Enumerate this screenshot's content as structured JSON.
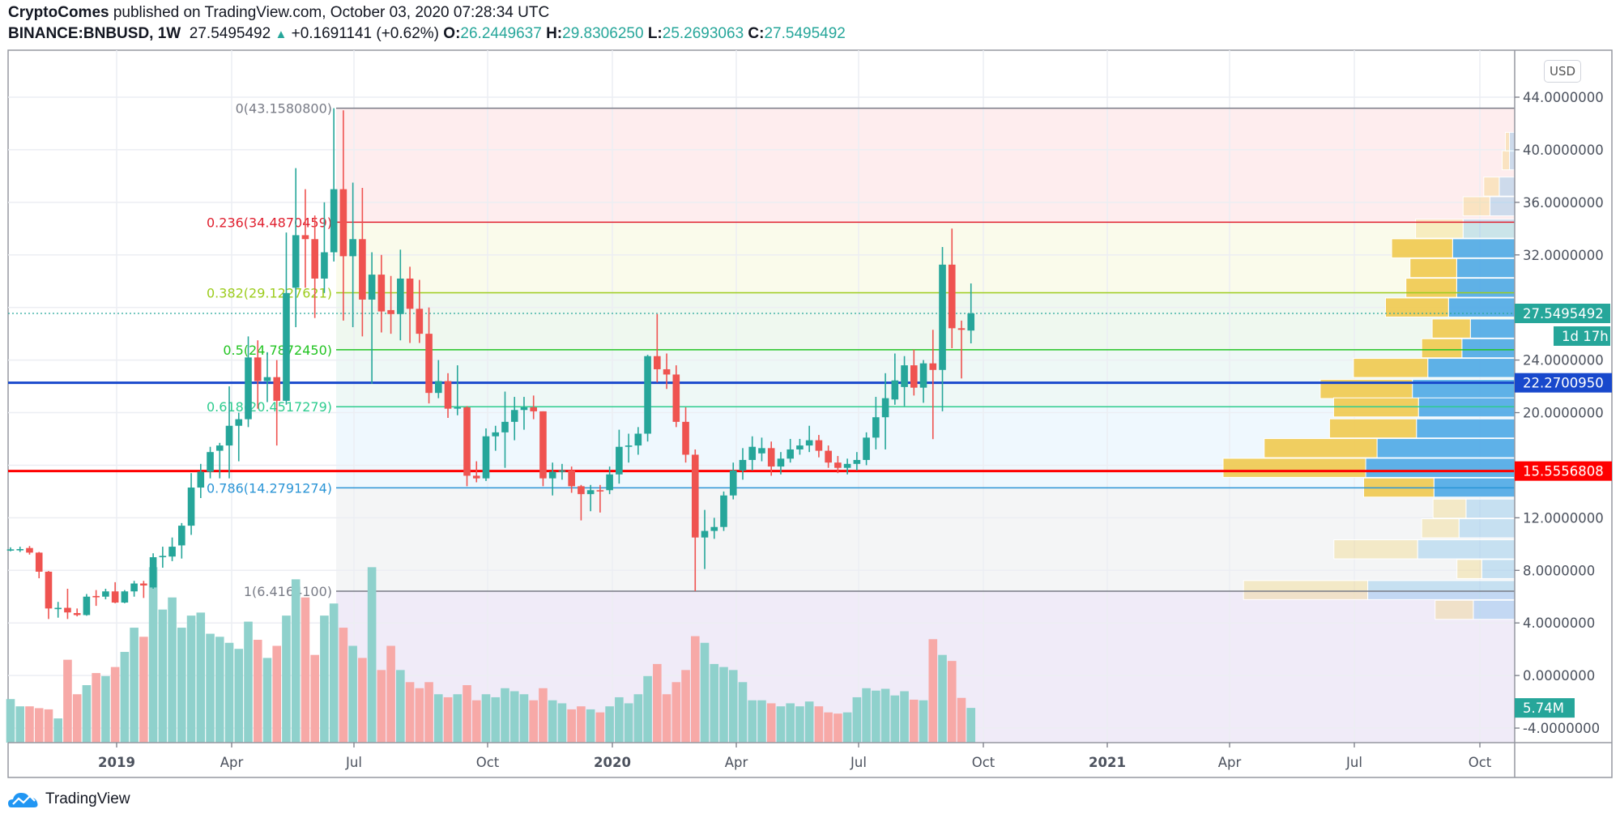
{
  "header": {
    "author": "CryptoComes",
    "published": " published on TradingView.com, October 03, 2020 07:28:34 UTC",
    "symbol": "BINANCE:BNBUSD, 1W",
    "last": "27.5495492",
    "change": "+0.1691141 (+0.62%)",
    "o_label": "O:",
    "o": "26.2449637",
    "h_label": "H:",
    "h": "29.8306250",
    "l_label": "L:",
    "l": "25.2693063",
    "c_label": "C:",
    "c": "27.5495492"
  },
  "currency_button": "USD",
  "logo": "TradingView",
  "colors": {
    "up": "#26a69a",
    "down": "#ef5350",
    "vol_up": "#8fd1cc",
    "vol_down": "#f7a9a7",
    "support_line": "#1848cc",
    "resistance_line": "#ff0000",
    "profile_up": "#f0c94f",
    "profile_down": "#4ea9e6"
  },
  "chart_data": {
    "type": "candlestick",
    "interval": "1W",
    "yaxis": {
      "range": [
        -5.2,
        47.2
      ],
      "ticks": [
        44,
        40,
        36,
        32,
        28,
        24,
        20,
        16,
        12,
        8,
        4,
        0,
        -4
      ],
      "tick_labels": [
        "44.0000000",
        "40.0000000",
        "36.0000000",
        "32.0000000",
        "",
        "24.0000000",
        "20.0000000",
        "",
        "12.0000000",
        "8.0000000",
        "4.0000000",
        "0.0000000",
        "-4.0000000"
      ]
    },
    "xaxis": {
      "tick_labels": [
        {
          "label": "2019",
          "bold": true
        },
        {
          "label": "Apr"
        },
        {
          "label": "Jul"
        },
        {
          "label": "Oct"
        },
        {
          "label": "2020",
          "bold": true
        },
        {
          "label": "Apr"
        },
        {
          "label": "Jul"
        },
        {
          "label": "Oct"
        },
        {
          "label": "2021",
          "bold": true
        },
        {
          "label": "Apr"
        },
        {
          "label": "Jul"
        },
        {
          "label": "Oct"
        }
      ]
    },
    "grid": true,
    "columns": [
      "date",
      "open",
      "high",
      "low",
      "close",
      "volume_millions"
    ],
    "candles": [
      [
        "2018-10-22",
        9.55,
        9.75,
        9.45,
        9.6,
        7.2
      ],
      [
        "2018-10-29",
        9.6,
        9.8,
        9.4,
        9.62,
        6.0
      ],
      [
        "2018-11-05",
        9.7,
        9.85,
        9.2,
        9.35,
        6.0
      ],
      [
        "2018-11-12",
        9.35,
        9.4,
        7.4,
        7.9,
        5.7
      ],
      [
        "2018-11-19",
        7.9,
        7.95,
        4.3,
        5.1,
        5.5
      ],
      [
        "2018-11-26",
        5.05,
        5.6,
        4.4,
        5.15,
        4.0
      ],
      [
        "2018-12-03",
        5.15,
        6.6,
        4.3,
        4.8,
        13.7
      ],
      [
        "2018-12-10",
        4.75,
        5.1,
        4.5,
        4.6,
        8.0
      ],
      [
        "2018-12-17",
        4.6,
        6.2,
        4.55,
        6.0,
        9.5
      ],
      [
        "2018-12-24",
        6.05,
        6.5,
        5.3,
        6.0,
        11.5
      ],
      [
        "2018-12-31",
        6.0,
        6.6,
        5.8,
        6.4,
        11.0
      ],
      [
        "2019-01-07",
        6.4,
        7.1,
        5.5,
        5.55,
        12.5
      ],
      [
        "2019-01-14",
        5.55,
        6.5,
        5.5,
        6.4,
        15
      ],
      [
        "2019-01-21",
        6.4,
        7.2,
        6.0,
        7.0,
        19
      ],
      [
        "2019-01-28",
        7.0,
        7.2,
        5.9,
        6.85,
        17.5
      ],
      [
        "2019-02-04",
        6.7,
        9.3,
        6.6,
        9.0,
        29
      ],
      [
        "2019-02-11",
        9.0,
        9.8,
        8.2,
        9.1,
        22
      ],
      [
        "2019-02-18",
        9.05,
        10.5,
        8.7,
        9.8,
        24
      ],
      [
        "2019-02-25",
        9.9,
        11.6,
        8.9,
        11.4,
        19
      ],
      [
        "2019-03-04",
        11.4,
        15.4,
        10.7,
        14.3,
        21
      ],
      [
        "2019-03-11",
        14.3,
        16.1,
        13.5,
        15.5,
        21.5
      ],
      [
        "2019-03-18",
        15.5,
        17.4,
        15.0,
        17.0,
        18
      ],
      [
        "2019-03-25",
        17.1,
        17.7,
        15.0,
        17.5,
        17.5
      ],
      [
        "2019-04-01",
        17.5,
        22.0,
        15.0,
        19.0,
        16.5
      ],
      [
        "2019-04-08",
        19.0,
        20.0,
        16.3,
        19.5,
        15.5
      ],
      [
        "2019-04-15",
        19.5,
        25.8,
        18.9,
        24.2,
        20
      ],
      [
        "2019-04-22",
        24.2,
        25.5,
        20.3,
        22.4,
        17
      ],
      [
        "2019-04-29",
        22.4,
        24.6,
        20.8,
        22.7,
        14
      ],
      [
        "2019-05-06",
        22.7,
        24.0,
        17.5,
        20.9,
        16
      ],
      [
        "2019-05-13",
        20.9,
        33.7,
        20.6,
        29.1,
        21
      ],
      [
        "2019-05-20",
        29.5,
        38.6,
        26.5,
        33.5,
        27
      ],
      [
        "2019-05-27",
        33.5,
        37.0,
        29.5,
        33.2,
        24
      ],
      [
        "2019-06-03",
        33.2,
        35.0,
        27.2,
        30.2,
        14.5
      ],
      [
        "2019-06-10",
        30.2,
        36.0,
        29.1,
        32.2,
        21
      ],
      [
        "2019-06-17",
        32.2,
        43.16,
        31.5,
        37.0,
        23
      ],
      [
        "2019-06-24",
        37.0,
        43.0,
        27.0,
        31.9,
        19
      ],
      [
        "2019-07-01",
        31.9,
        37.5,
        26.5,
        33.2,
        16
      ],
      [
        "2019-07-08",
        33.2,
        37.1,
        25.8,
        28.6,
        14
      ],
      [
        "2019-07-15",
        28.6,
        32.2,
        22.2,
        30.5,
        29
      ],
      [
        "2019-07-22",
        30.5,
        32.0,
        26.1,
        27.7,
        12
      ],
      [
        "2019-07-29",
        27.8,
        30.4,
        26.0,
        27.5,
        16
      ],
      [
        "2019-08-05",
        27.5,
        32.4,
        25.5,
        30.2,
        12
      ],
      [
        "2019-08-12",
        30.2,
        31.1,
        25.3,
        27.9,
        10
      ],
      [
        "2019-08-19",
        27.9,
        30.1,
        25.3,
        26.0,
        9
      ],
      [
        "2019-08-26",
        26.0,
        28.0,
        20.7,
        21.5,
        10
      ],
      [
        "2019-09-02",
        21.5,
        24.0,
        21.1,
        22.4,
        8
      ],
      [
        "2019-09-09",
        22.4,
        23.0,
        19.6,
        20.3,
        7.5
      ],
      [
        "2019-09-16",
        20.35,
        23.6,
        19.8,
        20.4,
        8
      ],
      [
        "2019-09-23",
        20.4,
        20.5,
        14.4,
        15.2,
        9.5
      ],
      [
        "2019-09-30",
        15.2,
        16.3,
        14.7,
        15.0,
        7
      ],
      [
        "2019-10-07",
        15.0,
        18.8,
        14.8,
        18.2,
        8
      ],
      [
        "2019-10-14",
        18.2,
        19.0,
        17.1,
        18.5,
        7.5
      ],
      [
        "2019-10-21",
        18.5,
        21.6,
        15.8,
        19.3,
        9
      ],
      [
        "2019-10-28",
        19.3,
        21.2,
        17.9,
        20.2,
        8.5
      ],
      [
        "2019-11-04",
        20.2,
        21.2,
        18.7,
        20.4,
        8
      ],
      [
        "2019-11-11",
        20.4,
        21.3,
        19.5,
        20.1,
        7
      ],
      [
        "2019-11-18",
        20.1,
        20.1,
        14.4,
        15.0,
        9
      ],
      [
        "2019-11-25",
        15.0,
        16.2,
        13.7,
        15.5,
        7
      ],
      [
        "2019-12-02",
        15.5,
        16.1,
        14.9,
        15.6,
        6.5
      ],
      [
        "2019-12-09",
        15.6,
        15.9,
        13.9,
        14.4,
        5.5
      ],
      [
        "2019-12-16",
        14.4,
        14.5,
        11.8,
        13.8,
        6
      ],
      [
        "2019-12-23",
        13.8,
        14.5,
        12.5,
        14.1,
        5.5
      ],
      [
        "2019-12-30",
        14.1,
        14.5,
        12.4,
        14.05,
        5
      ],
      [
        "2020-01-06",
        14.1,
        15.9,
        13.8,
        15.3,
        6
      ],
      [
        "2020-01-13",
        15.3,
        18.7,
        14.6,
        17.4,
        7.5
      ],
      [
        "2020-01-20",
        17.4,
        18.4,
        16.2,
        17.5,
        6.5
      ],
      [
        "2020-01-27",
        17.5,
        18.9,
        16.8,
        18.4,
        8
      ],
      [
        "2020-02-03",
        18.4,
        24.4,
        17.8,
        24.3,
        11
      ],
      [
        "2020-02-10",
        24.3,
        27.5,
        22.3,
        23.3,
        13
      ],
      [
        "2020-02-17",
        23.3,
        24.5,
        21.8,
        22.9,
        8
      ],
      [
        "2020-02-24",
        22.9,
        23.6,
        18.9,
        19.3,
        10
      ],
      [
        "2020-03-02",
        19.3,
        20.4,
        16.2,
        16.8,
        12
      ],
      [
        "2020-03-09",
        16.8,
        17.2,
        6.42,
        10.5,
        17.6
      ],
      [
        "2020-03-16",
        10.5,
        12.6,
        8.1,
        11.0,
        16.5
      ],
      [
        "2020-03-23",
        11.0,
        12.0,
        10.4,
        11.3,
        13
      ],
      [
        "2020-03-30",
        11.3,
        14.0,
        11.0,
        13.7,
        12.5
      ],
      [
        "2020-04-06",
        13.7,
        16.2,
        13.4,
        15.6,
        12
      ],
      [
        "2020-04-13",
        15.6,
        17.3,
        14.9,
        16.4,
        10
      ],
      [
        "2020-04-20",
        16.4,
        18.2,
        15.6,
        17.4,
        7
      ],
      [
        "2020-04-27",
        16.9,
        18.1,
        16.3,
        17.3,
        7
      ],
      [
        "2020-05-04",
        17.3,
        17.8,
        15.2,
        15.9,
        6.5
      ],
      [
        "2020-05-11",
        15.9,
        17.0,
        15.3,
        16.5,
        6
      ],
      [
        "2020-05-18",
        16.5,
        18.0,
        16.2,
        17.2,
        6.5
      ],
      [
        "2020-05-25",
        17.2,
        18.0,
        16.8,
        17.5,
        6
      ],
      [
        "2020-06-01",
        17.5,
        19.0,
        17.0,
        17.9,
        6.8
      ],
      [
        "2020-06-08",
        17.9,
        18.3,
        16.6,
        17.1,
        6
      ],
      [
        "2020-06-15",
        17.1,
        17.5,
        15.8,
        16.2,
        5
      ],
      [
        "2020-06-22",
        16.2,
        16.7,
        15.4,
        15.8,
        4.8
      ],
      [
        "2020-06-29",
        15.8,
        16.5,
        15.3,
        16.1,
        5
      ],
      [
        "2020-07-06",
        16.1,
        17.0,
        15.6,
        16.4,
        7.5
      ],
      [
        "2020-07-13",
        16.4,
        18.5,
        16.0,
        18.1,
        9
      ],
      [
        "2020-07-20",
        18.1,
        21.2,
        17.2,
        19.65,
        8.6
      ],
      [
        "2020-07-27",
        19.65,
        23.0,
        17.2,
        21.1,
        8.9
      ],
      [
        "2020-08-03",
        21.0,
        24.5,
        20.6,
        22.45,
        7.8
      ],
      [
        "2020-08-10",
        21.95,
        24.3,
        20.5,
        23.6,
        8.5
      ],
      [
        "2020-08-17",
        23.6,
        24.8,
        21.3,
        21.9,
        7.1
      ],
      [
        "2020-08-24",
        21.9,
        24.0,
        20.75,
        23.75,
        7.0
      ],
      [
        "2020-08-31",
        23.75,
        26.3,
        17.98,
        23.25,
        17.1
      ],
      [
        "2020-09-07",
        23.25,
        32.6,
        20.1,
        31.26,
        14.5
      ],
      [
        "2020-09-14",
        31.26,
        34.0,
        24.9,
        26.42,
        13.5
      ],
      [
        "2020-09-21",
        26.42,
        27.0,
        22.6,
        26.3,
        7.4
      ],
      [
        "2020-09-28",
        26.2449637,
        29.830625,
        25.2693063,
        27.5495492,
        5.74
      ]
    ],
    "fib_levels": [
      {
        "ratio": 0,
        "price": 43.15808,
        "label": "0(43.1580800)",
        "color": "#787b86"
      },
      {
        "ratio": 0.236,
        "price": 34.4870459,
        "label": "0.236(34.4870459)",
        "color": "#e0202f"
      },
      {
        "ratio": 0.382,
        "price": 29.1227621,
        "label": "0.382(29.1227621)",
        "color": "#9ccc1c"
      },
      {
        "ratio": 0.5,
        "price": 24.787245,
        "label": "0.5(24.7872450)",
        "color": "#22c422"
      },
      {
        "ratio": 0.618,
        "price": 20.4517279,
        "label": "0.618(20.4517279)",
        "color": "#2ecc8f"
      },
      {
        "ratio": 0.786,
        "price": 14.2791274,
        "label": "0.786(14.2791274)",
        "color": "#2b95d6"
      },
      {
        "ratio": 1,
        "price": 6.41641,
        "label": "1(6.4164100)",
        "color": "#787b86"
      }
    ],
    "fib_zone_colors": [
      "rgba(242,54,69,0.09)",
      "rgba(205,220,57,0.1)",
      "rgba(76,175,80,0.09)",
      "rgba(8,153,129,0.07)",
      "rgba(33,150,243,0.07)",
      "rgba(120,123,134,0.08)",
      "rgba(103,58,183,0.1)"
    ],
    "horizontal_lines": [
      {
        "price": 22.270095,
        "label": "22.2700950",
        "color": "#1848cc"
      },
      {
        "price": 15.5556808,
        "label": "15.5556808",
        "color": "#ff0000"
      }
    ],
    "last_price": {
      "price": 27.5495492,
      "label": "27.5495492",
      "countdown": "1d 17h",
      "color": "#26a69a"
    },
    "last_volume": {
      "value": 5.74,
      "label": "5.74M"
    },
    "volume_profile": {
      "columns": [
        "price",
        "up_volume_pct",
        "down_volume_pct",
        "in_value_area"
      ],
      "rows": [
        [
          40.6,
          1.4,
          1.8,
          false
        ],
        [
          39.2,
          2.5,
          1.8,
          false
        ],
        [
          37.2,
          5.3,
          5.3,
          false
        ],
        [
          35.7,
          9.2,
          8.5,
          false
        ],
        [
          34.0,
          16.3,
          17.7,
          false
        ],
        [
          32.5,
          20.9,
          21.3,
          true
        ],
        [
          31.0,
          16.0,
          19.9,
          true
        ],
        [
          29.5,
          17.4,
          19.9,
          true
        ],
        [
          28.0,
          21.6,
          22.7,
          true
        ],
        [
          26.4,
          13.1,
          15.2,
          true
        ],
        [
          24.9,
          13.8,
          18.1,
          true
        ],
        [
          23.4,
          25.5,
          29.8,
          true
        ],
        [
          21.8,
          31.6,
          35.1,
          true
        ],
        [
          20.4,
          29.1,
          33.0,
          true
        ],
        [
          18.8,
          29.8,
          33.7,
          true
        ],
        [
          17.3,
          38.7,
          47.2,
          true
        ],
        [
          15.8,
          48.9,
          51.1,
          true
        ],
        [
          14.3,
          24.1,
          27.7,
          true
        ],
        [
          12.7,
          11.3,
          16.7,
          false
        ],
        [
          11.2,
          12.8,
          19.1,
          false
        ],
        [
          9.6,
          28.7,
          33.3,
          false
        ],
        [
          8.1,
          8.5,
          11.3,
          false
        ],
        [
          6.5,
          42.6,
          50.4,
          false
        ],
        [
          5.0,
          13.1,
          14.2,
          false
        ]
      ]
    }
  }
}
